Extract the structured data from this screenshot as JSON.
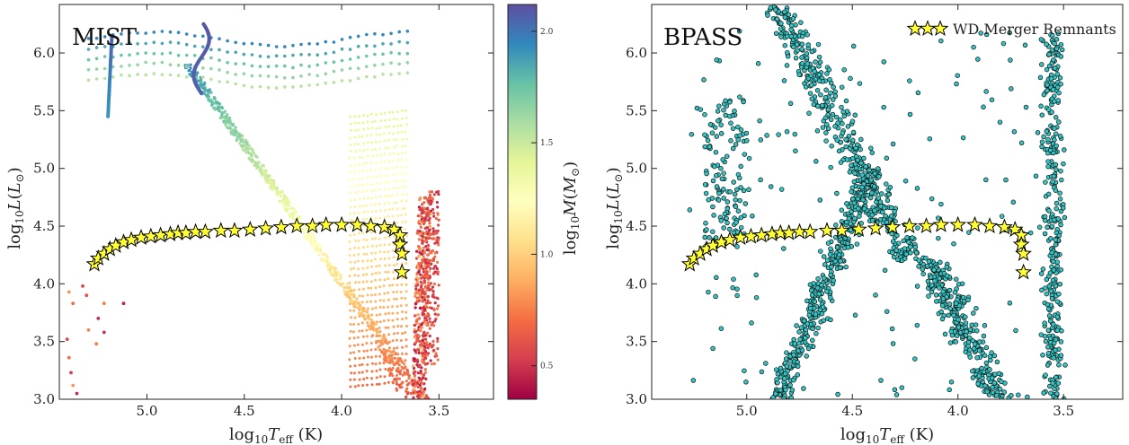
{
  "chart_data": [
    {
      "type": "scatter",
      "title": "MIST",
      "xlabel": "log10 T_eff (K)",
      "ylabel": "log10 L(L_sun)",
      "x_axis_reversed": true,
      "xlim": [
        5.45,
        3.22
      ],
      "ylim": [
        3.0,
        6.42
      ],
      "xticks": [
        "5.0",
        "4.5",
        "4.0",
        "3.5"
      ],
      "yticks": [
        "3.0",
        "3.5",
        "4.0",
        "4.5",
        "5.0",
        "5.5",
        "6.0"
      ],
      "colorbar": {
        "label": "log10 M(M_sun)",
        "range": [
          0.35,
          2.12
        ],
        "ticks": [
          "0.5",
          "1.0",
          "1.5",
          "2.0"
        ],
        "colormap": [
          "#9e0142",
          "#d53e4f",
          "#f46d43",
          "#fdae61",
          "#fee08b",
          "#ffffbf",
          "#e6f598",
          "#abdda4",
          "#66c2a5",
          "#3288bd",
          "#5e4fa2"
        ]
      },
      "series": [
        {
          "name": "WD Merger Remnants",
          "marker": "star",
          "color": "#ffff33",
          "x": [
            5.27,
            5.25,
            5.22,
            5.19,
            5.16,
            5.12,
            5.08,
            5.03,
            4.98,
            4.93,
            4.88,
            4.84,
            4.8,
            4.75,
            4.7,
            4.62,
            4.55,
            4.47,
            4.39,
            4.31,
            4.23,
            4.15,
            4.08,
            4.0,
            3.92,
            3.85,
            3.78,
            3.73,
            3.7,
            3.7,
            3.69,
            3.69
          ],
          "y": [
            4.17,
            4.22,
            4.26,
            4.3,
            4.33,
            4.36,
            4.38,
            4.4,
            4.41,
            4.42,
            4.43,
            4.44,
            4.44,
            4.45,
            4.45,
            4.46,
            4.46,
            4.47,
            4.48,
            4.49,
            4.5,
            4.5,
            4.51,
            4.51,
            4.51,
            4.5,
            4.49,
            4.47,
            4.42,
            4.34,
            4.26,
            4.1
          ]
        }
      ],
      "background_tracks": "MIST evolutionary track points colored by log10 initial mass"
    },
    {
      "type": "scatter",
      "title": "BPASS",
      "xlabel": "log10 T_eff (K)",
      "ylabel": "log10 L(L_sun)",
      "x_axis_reversed": true,
      "xlim": [
        5.45,
        3.22
      ],
      "ylim": [
        3.0,
        6.42
      ],
      "xticks": [
        "5.0",
        "4.5",
        "4.0",
        "3.5"
      ],
      "yticks": [
        "3.0",
        "3.5",
        "4.0",
        "4.5",
        "5.0",
        "5.5",
        "6.0"
      ],
      "legend": {
        "location": "top-right",
        "entries": [
          "WD Merger Remnants"
        ]
      },
      "series": [
        {
          "name": "WD Merger Remnants",
          "marker": "star",
          "color": "#ffff33",
          "x": [
            5.27,
            5.25,
            5.22,
            5.19,
            5.16,
            5.12,
            5.08,
            5.03,
            4.98,
            4.93,
            4.88,
            4.84,
            4.8,
            4.75,
            4.7,
            4.62,
            4.55,
            4.47,
            4.39,
            4.31,
            4.23,
            4.15,
            4.08,
            4.0,
            3.92,
            3.85,
            3.78,
            3.73,
            3.7,
            3.7,
            3.69,
            3.69
          ],
          "y": [
            4.17,
            4.22,
            4.26,
            4.3,
            4.33,
            4.36,
            4.38,
            4.4,
            4.41,
            4.42,
            4.43,
            4.44,
            4.44,
            4.45,
            4.45,
            4.46,
            4.46,
            4.47,
            4.48,
            4.49,
            4.5,
            4.5,
            4.51,
            4.51,
            4.51,
            4.5,
            4.49,
            4.47,
            4.42,
            4.34,
            4.26,
            4.1
          ]
        }
      ],
      "background_points": {
        "color": "#33c4c4",
        "edge": "#111111",
        "description": "BPASS binary population model stars"
      }
    }
  ]
}
